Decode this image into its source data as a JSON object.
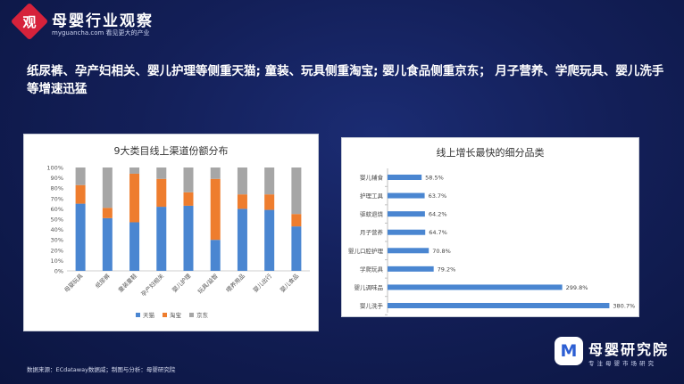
{
  "logo": {
    "char": "观",
    "name": "母婴行业观察",
    "sub": "myguancha.com 看见更大的产业"
  },
  "headline": "纸尿裤、孕产妇相关、婴儿护理等侧重天猫; 童装、玩具侧重淘宝; 婴儿食品侧重京东； 月子营养、学爬玩具、婴儿洗手等增速迅猛",
  "colors": {
    "tmall": "#4a86d1",
    "taobao": "#ee7d2e",
    "jd": "#a6a6a6",
    "hbar": "#4a86d1"
  },
  "chart_data": [
    {
      "type": "bar",
      "stacked": true,
      "title": "9大类目线上渠道份额分布",
      "categories": [
        "母婴玩具",
        "纸尿裤",
        "童装童鞋",
        "孕产妇相关",
        "婴儿护理",
        "玩具/益智",
        "喂养用品",
        "婴儿出行",
        "婴儿食品"
      ],
      "series": [
        {
          "name": "天猫",
          "values": [
            65,
            51,
            47,
            62,
            63,
            30,
            60,
            59,
            43
          ]
        },
        {
          "name": "淘宝",
          "values": [
            18,
            10,
            47,
            27,
            13,
            59,
            14,
            15,
            12
          ]
        },
        {
          "name": "京东",
          "values": [
            17,
            39,
            6,
            11,
            24,
            11,
            26,
            26,
            45
          ]
        }
      ],
      "yticks": [
        "0%",
        "10%",
        "20%",
        "30%",
        "40%",
        "50%",
        "60%",
        "70%",
        "80%",
        "90%",
        "100%"
      ],
      "ylim": [
        0,
        100
      ],
      "legend_position": "bottom"
    },
    {
      "type": "bar",
      "orientation": "horizontal",
      "title": "线上增长最快的细分品类",
      "categories": [
        "婴儿辅食",
        "护理工具",
        "驱蚊退烧",
        "月子营养",
        "婴儿口腔护理",
        "学爬玩具",
        "婴儿调味品",
        "婴儿洗手"
      ],
      "values": [
        58.5,
        63.7,
        64.2,
        64.7,
        70.8,
        79.2,
        299.8,
        380.7
      ],
      "labels": [
        "58.5%",
        "63.7%",
        "64.2%",
        "64.7%",
        "70.8%",
        "79.2%",
        "299.8%",
        "380.7%"
      ],
      "xlim": [
        0,
        400
      ]
    }
  ],
  "footer": "数据来源：ECdataway数据威；制图与分析：母婴研究院",
  "brand": {
    "icon": "M",
    "name": "母婴研究院",
    "sub": "专注母婴市场研究"
  }
}
